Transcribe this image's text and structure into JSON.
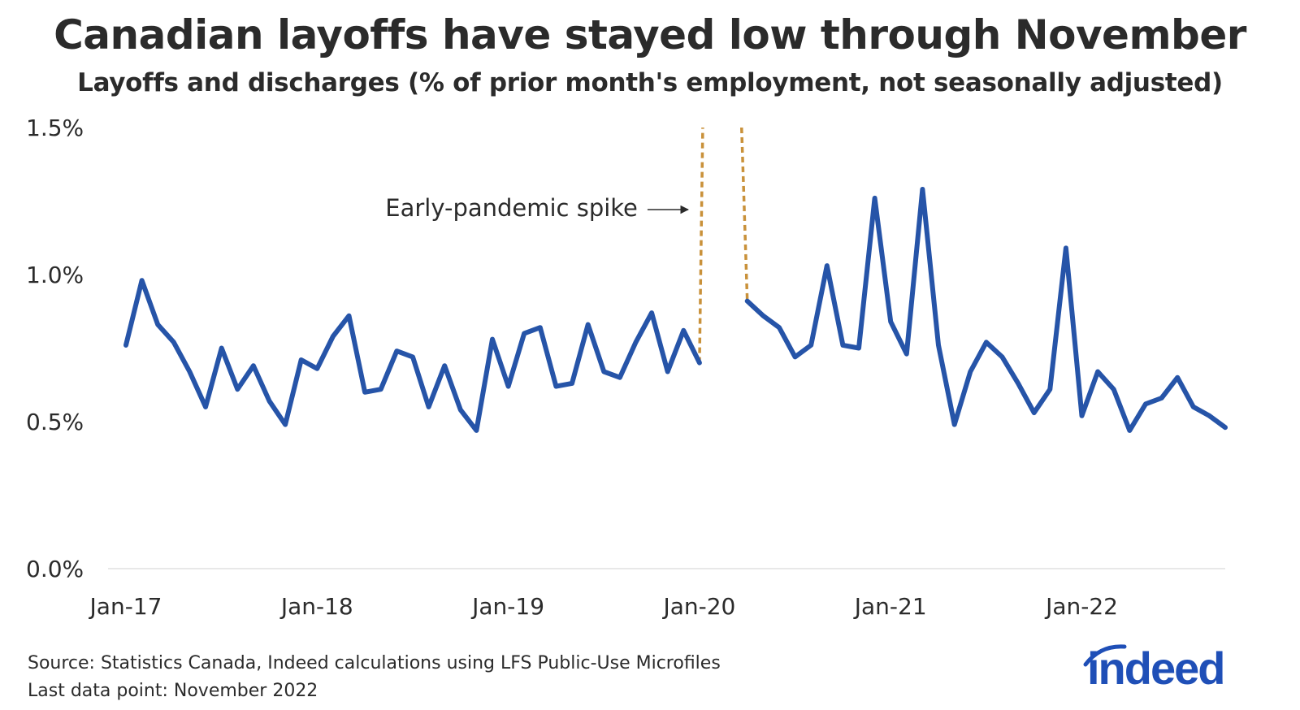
{
  "header": {
    "title": "Canadian layoffs have stayed low through November",
    "subtitle": "Layoffs and discharges (% of prior month's employment, not seasonally adjusted)"
  },
  "footer": {
    "source": "Source: Statistics Canada, Indeed calculations using LFS Public-Use Microfiles",
    "last_point": "Last data point: November 2022"
  },
  "logo": {
    "text": "indeed",
    "color": "#1f4fb7"
  },
  "colors": {
    "line": "#2654a8",
    "spike": "#c9913a",
    "axis": "#e0e0e0",
    "text": "#2b2b2b"
  },
  "chart_data": {
    "type": "line",
    "title": "Canadian layoffs have stayed low through November",
    "subtitle": "Layoffs and discharges (% of prior month's employment, not seasonally adjusted)",
    "xlabel": "",
    "ylabel": "",
    "ylim": [
      0,
      1.5
    ],
    "yticks": [
      {
        "value": 0,
        "label": "0.0%"
      },
      {
        "value": 0.5,
        "label": "0.5%"
      },
      {
        "value": 1.0,
        "label": "1.0%"
      },
      {
        "value": 1.5,
        "label": "1.5%"
      }
    ],
    "xticks": [
      {
        "index": 0,
        "label": "Jan-17"
      },
      {
        "index": 12,
        "label": "Jan-18"
      },
      {
        "index": 24,
        "label": "Jan-19"
      },
      {
        "index": 36,
        "label": "Jan-20"
      },
      {
        "index": 48,
        "label": "Jan-21"
      },
      {
        "index": 60,
        "label": "Jan-22"
      }
    ],
    "start": "Jan-17",
    "end": "Nov-22",
    "series": [
      {
        "name": "Layoffs and discharges",
        "values": [
          0.76,
          0.98,
          0.83,
          0.77,
          0.67,
          0.55,
          0.75,
          0.61,
          0.69,
          0.57,
          0.49,
          0.71,
          0.68,
          0.79,
          0.86,
          0.6,
          0.61,
          0.74,
          0.72,
          0.55,
          0.69,
          0.54,
          0.47,
          0.78,
          0.62,
          0.8,
          0.82,
          0.62,
          0.63,
          0.83,
          0.67,
          0.65,
          0.77,
          0.87,
          0.67,
          0.81,
          0.7,
          null,
          null,
          0.91,
          0.86,
          0.82,
          0.72,
          0.76,
          1.03,
          0.76,
          0.75,
          1.26,
          0.84,
          0.73,
          1.29,
          0.76,
          0.49,
          0.67,
          0.77,
          0.72,
          0.63,
          0.53,
          0.61,
          1.09,
          0.52,
          0.67,
          0.61,
          0.47,
          0.56,
          0.58,
          0.65,
          0.55,
          0.52,
          0.48
        ]
      }
    ],
    "spike": {
      "note": "Early-pandemic spike",
      "from_index": 36,
      "to_index": 39,
      "exceeds_axis_max": true
    }
  }
}
